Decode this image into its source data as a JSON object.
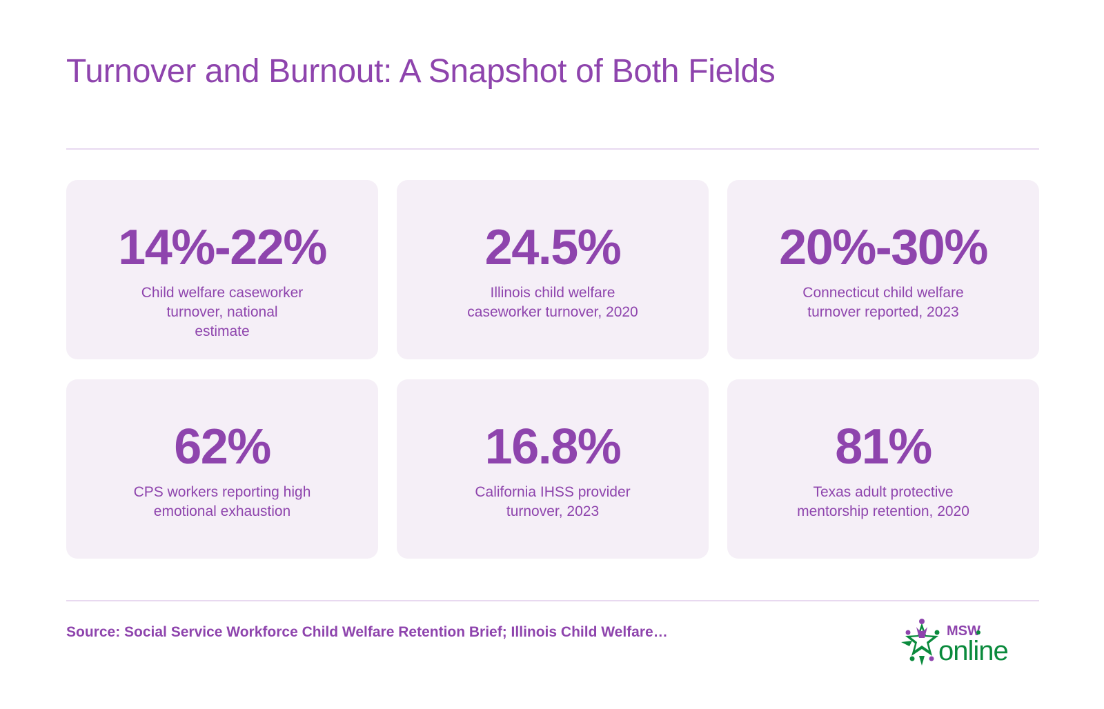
{
  "title": "Turnover and Burnout: A Snapshot of Both Fields",
  "cards": [
    {
      "stat": "14%-22%",
      "lines": [
        "Child welfare caseworker",
        "turnover, national",
        "estimate"
      ]
    },
    {
      "stat": "24.5%",
      "lines": [
        "Illinois child welfare",
        "caseworker turnover, 2020"
      ]
    },
    {
      "stat": "20%-30%",
      "lines": [
        "Connecticut child welfare",
        "turnover reported, 2023"
      ]
    },
    {
      "stat": "62%",
      "lines": [
        "CPS workers reporting high",
        "emotional exhaustion"
      ]
    },
    {
      "stat": "16.8%",
      "lines": [
        "California IHSS provider",
        "turnover, 2023"
      ]
    },
    {
      "stat": "81%",
      "lines": [
        "Texas adult protective",
        "mentorship retention, 2020"
      ]
    }
  ],
  "source": "Source: Social Service Workforce Child Welfare Retention Brief; Illinois Child Welfare…",
  "logo": {
    "top": "MSW",
    "bottom": "online"
  },
  "colors": {
    "accent": "#8e44ad",
    "card_bg": "#f5eff7",
    "divider": "#e8d9f0",
    "logo_green": "#0a8a3c"
  }
}
